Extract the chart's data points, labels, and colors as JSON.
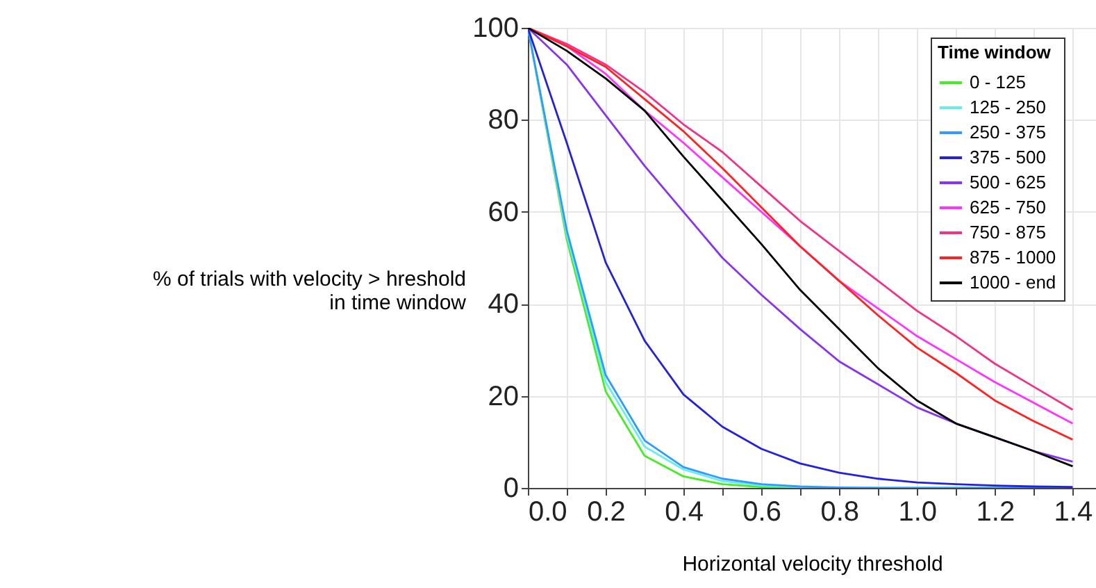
{
  "chart_data": {
    "type": "line",
    "xlabel": "Horizontal velocity threshold",
    "ylabel": "% of trials with velocity > hreshold\nin time window",
    "legend_title": "Time window",
    "x": [
      0,
      0.1,
      0.2,
      0.3,
      0.4,
      0.5,
      0.6,
      0.7,
      0.8,
      0.9,
      1.0,
      1.1,
      1.2,
      1.3,
      1.4
    ],
    "xlim": [
      0,
      1.46
    ],
    "ylim": [
      0,
      100
    ],
    "xticks": [
      {
        "value": 0,
        "label": "0.0"
      },
      {
        "value": 0.1,
        "label": null
      },
      {
        "value": 0.2,
        "label": "0.2"
      },
      {
        "value": 0.3,
        "label": null
      },
      {
        "value": 0.4,
        "label": "0.4"
      },
      {
        "value": 0.5,
        "label": null
      },
      {
        "value": 0.6,
        "label": "0.6"
      },
      {
        "value": 0.7,
        "label": null
      },
      {
        "value": 0.8,
        "label": "0.8"
      },
      {
        "value": 0.9,
        "label": null
      },
      {
        "value": 1.0,
        "label": "1.0"
      },
      {
        "value": 1.1,
        "label": null
      },
      {
        "value": 1.2,
        "label": "1.2"
      },
      {
        "value": 1.3,
        "label": null
      },
      {
        "value": 1.4,
        "label": "1.4"
      }
    ],
    "yticks": [
      0,
      20,
      40,
      60,
      80,
      100
    ],
    "grid": true,
    "legend": "top right",
    "marker": "none",
    "line_style": "solid",
    "series": [
      {
        "name": "0 - 125",
        "color": "#44ee22",
        "values": [
          100,
          54,
          21,
          7,
          2.5,
          0.8,
          0.2,
          0,
          0,
          null,
          null,
          null,
          null,
          null,
          null
        ]
      },
      {
        "name": "125 - 250",
        "color": "#66eeee",
        "values": [
          100,
          55,
          23,
          9,
          4,
          1.5,
          0.5,
          0.2,
          0,
          0,
          0,
          0,
          0,
          0,
          0
        ]
      },
      {
        "name": "250 - 375",
        "color": "#3399ff",
        "values": [
          100,
          56,
          24.5,
          10.3,
          4.5,
          2,
          0.8,
          0.3,
          0.1,
          0,
          0,
          0,
          0,
          0,
          0
        ]
      },
      {
        "name": "375 - 500",
        "color": "#2222dd",
        "values": [
          100,
          75,
          49,
          32,
          20.3,
          13.3,
          8.5,
          5.3,
          3.3,
          2,
          1.2,
          0.8,
          0.5,
          0.3,
          0.2
        ]
      },
      {
        "name": "500 - 625",
        "color": "#8833ee",
        "values": [
          100,
          92,
          81,
          70,
          60,
          50,
          42,
          34.5,
          27.5,
          22.5,
          17.5,
          14,
          11,
          8,
          5.7
        ]
      },
      {
        "name": "625 - 750",
        "color": "#ff33ff",
        "values": [
          100,
          96,
          90,
          82,
          75,
          67.5,
          60,
          52.5,
          45,
          39,
          33,
          28,
          23,
          18.5,
          14
        ]
      },
      {
        "name": "750 - 875",
        "color": "#ee3388",
        "values": [
          100,
          96.5,
          92,
          86,
          79,
          73,
          65.5,
          58,
          51.5,
          45,
          38.5,
          33,
          27,
          22,
          17
        ]
      },
      {
        "name": "875 - 1000",
        "color": "#ff2222",
        "values": [
          100,
          96,
          91.5,
          84.5,
          77.5,
          69.5,
          61,
          52.5,
          45,
          37.5,
          30.5,
          25,
          19,
          14.5,
          10.5
        ]
      },
      {
        "name": "1000 - end",
        "color": "#000000",
        "values": [
          100,
          95,
          89,
          82,
          72,
          62.5,
          53,
          43,
          34.5,
          26,
          19,
          14,
          11,
          8,
          4.7
        ]
      }
    ]
  }
}
